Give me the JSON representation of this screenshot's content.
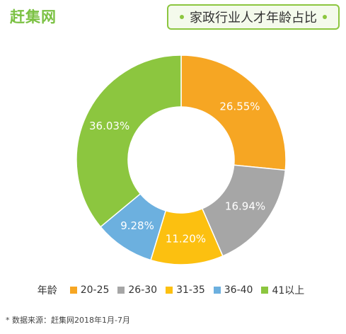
{
  "brand": {
    "logo": "赶集网",
    "accent": "#8cc63f"
  },
  "chart_data": {
    "type": "pie",
    "title": "家政行业人才年龄占比",
    "legend_title": "年龄",
    "categories": [
      "20-25",
      "26-30",
      "31-35",
      "36-40",
      "41以上"
    ],
    "values": [
      26.55,
      16.94,
      11.2,
      9.28,
      36.03
    ],
    "labels": [
      "26.55%",
      "16.94%",
      "11.20%",
      "9.28%",
      "36.03%"
    ],
    "colors": [
      "#f6a623",
      "#a6a6a6",
      "#fcc010",
      "#6cb0df",
      "#8cc63f"
    ],
    "legend_placement": "bottom",
    "donut": true
  },
  "source": "数据来源：赶集网2018年1月-7月"
}
